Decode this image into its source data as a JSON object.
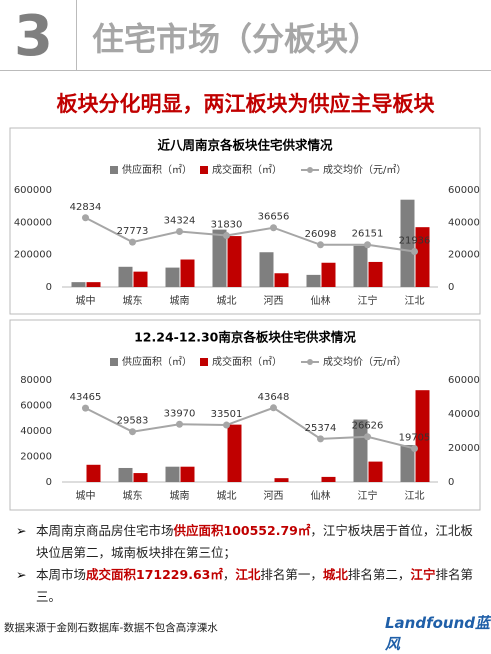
{
  "header": {
    "number": "3",
    "title": "住宅市场（分板块）",
    "headline": "板块分化明显，两江板块为供应主导板块"
  },
  "chart_data": [
    {
      "type": "bar-line",
      "title": "近八周南京各板块住宅供求情况",
      "categories": [
        "城中",
        "城东",
        "城南",
        "城北",
        "河西",
        "仙林",
        "江宁",
        "江北"
      ],
      "series": [
        {
          "name": "供应面积（㎡）",
          "color": "#7f7f7f",
          "kind": "bar",
          "values": [
            30000,
            125000,
            120000,
            355000,
            215000,
            75000,
            255000,
            540000
          ]
        },
        {
          "name": "成交面积（㎡）",
          "color": "#c00000",
          "kind": "bar",
          "values": [
            30000,
            95000,
            170000,
            315000,
            85000,
            150000,
            155000,
            370000
          ]
        },
        {
          "name": "成交均价（元/㎡）",
          "color": "#a6a6a6",
          "kind": "line",
          "axis": "y2",
          "values": [
            42834,
            27773,
            34324,
            31830,
            36656,
            26098,
            26151,
            21936
          ]
        }
      ],
      "ylim": [
        0,
        600000
      ],
      "yticks": [
        0,
        200000,
        400000,
        600000
      ],
      "y2lim": [
        0,
        60000
      ],
      "y2ticks": [
        0,
        20000,
        40000,
        60000
      ],
      "grid": false
    },
    {
      "type": "bar-line",
      "title": "12.24-12.30南京各板块住宅供求情况",
      "categories": [
        "城中",
        "城东",
        "城南",
        "城北",
        "河西",
        "仙林",
        "江宁",
        "江北"
      ],
      "series": [
        {
          "name": "供应面积（㎡）",
          "color": "#7f7f7f",
          "kind": "bar",
          "values": [
            0,
            11000,
            12000,
            0,
            0,
            0,
            49000,
            29000
          ]
        },
        {
          "name": "成交面积（㎡）",
          "color": "#c00000",
          "kind": "bar",
          "values": [
            13500,
            7000,
            12000,
            45000,
            3000,
            4000,
            16000,
            72000
          ]
        },
        {
          "name": "成交均价（元/㎡）",
          "color": "#a6a6a6",
          "kind": "line",
          "axis": "y2",
          "values": [
            43465,
            29583,
            33970,
            33501,
            43648,
            25374,
            26626,
            19705
          ]
        }
      ],
      "ylim": [
        0,
        80000
      ],
      "yticks": [
        0,
        20000,
        40000,
        60000,
        80000
      ],
      "y2lim": [
        0,
        60000
      ],
      "y2ticks": [
        0,
        20000,
        40000,
        60000
      ],
      "grid": false
    }
  ],
  "bullets": [
    [
      {
        "text": "本周南京商品房住宅市场",
        "color": "#222222"
      },
      {
        "text": "供应面积100552.79㎡",
        "color": "#c00000"
      },
      {
        "text": "，江宁板块居于首位，江北板块位居第二，城南板块排在第三位；",
        "color": "#222222"
      }
    ],
    [
      {
        "text": "本周市场",
        "color": "#222222"
      },
      {
        "text": "成交面积171229.63㎡",
        "color": "#c00000"
      },
      {
        "text": "，",
        "color": "#222222"
      },
      {
        "text": "江北",
        "color": "#c00000"
      },
      {
        "text": "排名第一，",
        "color": "#222222"
      },
      {
        "text": "城北",
        "color": "#c00000"
      },
      {
        "text": "排名第二，",
        "color": "#222222"
      },
      {
        "text": "江宁",
        "color": "#c00000"
      },
      {
        "text": "排名第三。",
        "color": "#222222"
      }
    ]
  ],
  "footer": {
    "source": "数据来源于金刚石数据库-数据不包含高淳溧水",
    "logo": "Landfound蓝风"
  }
}
